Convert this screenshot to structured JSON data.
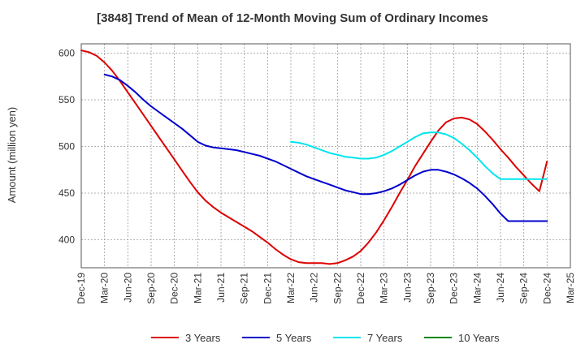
{
  "chart_data": {
    "type": "line",
    "title": "[3848]  Trend of Mean of 12-Month Moving Sum of Ordinary Incomes",
    "xlabel": "",
    "ylabel": "Amount (million yen)",
    "ylim": [
      370,
      610
    ],
    "yticks": [
      400,
      450,
      500,
      550,
      600
    ],
    "categories": [
      "Dec-19",
      "Mar-20",
      "Jun-20",
      "Sep-20",
      "Dec-20",
      "Mar-21",
      "Jun-21",
      "Sep-21",
      "Dec-21",
      "Mar-22",
      "Jun-22",
      "Sep-22",
      "Dec-22",
      "Mar-23",
      "Jun-23",
      "Sep-23",
      "Dec-23",
      "Mar-24",
      "Jun-24",
      "Sep-24",
      "Dec-24",
      "Mar-25"
    ],
    "grid": true,
    "legend_position": "bottom",
    "series": [
      {
        "name": "3 Years",
        "color": "#dd0000",
        "x": [
          0,
          0.333,
          0.667,
          1,
          1.333,
          1.667,
          2,
          2.333,
          2.667,
          3,
          3.333,
          3.667,
          4,
          4.333,
          4.667,
          5,
          5.333,
          5.667,
          6,
          6.333,
          6.667,
          7,
          7.333,
          7.667,
          8,
          8.333,
          8.667,
          9,
          9.333,
          9.667,
          10,
          10.333,
          10.667,
          11,
          11.333,
          11.667,
          12,
          12.333,
          12.667,
          13,
          13.333,
          13.667,
          14,
          14.333,
          14.667,
          15,
          15.333,
          15.667,
          16,
          16.333,
          16.667,
          17,
          17.333,
          17.667,
          18,
          18.333,
          18.667,
          19,
          19.333,
          19.667,
          20
        ],
        "values": [
          603,
          601,
          597,
          590,
          581,
          570,
          558,
          546,
          534,
          522,
          510,
          498,
          486,
          474,
          462,
          451,
          442,
          435,
          429,
          424,
          419,
          414,
          409,
          403,
          397,
          390,
          384,
          379,
          376,
          375,
          375,
          375,
          374,
          375,
          378,
          382,
          388,
          397,
          408,
          421,
          435,
          450,
          464,
          479,
          492,
          505,
          517,
          526,
          530,
          531,
          529,
          524,
          516,
          507,
          497,
          488,
          478,
          469,
          460,
          452,
          484
        ],
        "values_note": "ordered by x"
      },
      {
        "name": "5 Years",
        "color": "#0000cc",
        "x": [
          1,
          1.333,
          1.667,
          2,
          2.333,
          2.667,
          3,
          3.333,
          3.667,
          4,
          4.333,
          4.667,
          5,
          5.333,
          5.667,
          6,
          6.333,
          6.667,
          7,
          7.333,
          7.667,
          8,
          8.333,
          8.667,
          9,
          9.333,
          9.667,
          10,
          10.333,
          10.667,
          11,
          11.333,
          11.667,
          12,
          12.333,
          12.667,
          13,
          13.333,
          13.667,
          14,
          14.333,
          14.667,
          15,
          15.333,
          15.667,
          16,
          16.333,
          16.667,
          17,
          17.333,
          17.667,
          18,
          18.333,
          18.667,
          19,
          19.333,
          19.667,
          20
        ],
        "values": [
          577,
          575,
          571,
          565,
          558,
          550,
          543,
          537,
          531,
          525,
          519,
          512,
          505,
          501,
          499,
          498,
          497,
          496,
          494,
          492,
          490,
          487,
          484,
          480,
          476,
          472,
          468,
          465,
          462,
          459,
          456,
          453,
          451,
          449,
          449,
          450,
          452,
          455,
          459,
          464,
          469,
          473,
          475,
          475,
          473,
          470,
          466,
          461,
          455,
          447,
          438,
          428,
          420,
          420,
          420,
          420,
          420,
          420
        ],
        "values_note": "ordered by x"
      },
      {
        "name": "7 Years",
        "color": "#00e5ee",
        "x": [
          9,
          9.333,
          9.667,
          10,
          10.333,
          10.667,
          11,
          11.333,
          11.667,
          12,
          12.333,
          12.667,
          13,
          13.333,
          13.667,
          14,
          14.333,
          14.667,
          15,
          15.333,
          15.667,
          16,
          16.333,
          16.667,
          17,
          17.333,
          17.667,
          18,
          18.333,
          18.667,
          19,
          19.333,
          19.667,
          20
        ],
        "values": [
          505,
          504,
          502,
          499,
          496,
          493,
          491,
          489,
          488,
          487,
          487,
          488,
          491,
          495,
          500,
          505,
          510,
          514,
          515,
          515,
          513,
          509,
          503,
          496,
          488,
          479,
          471,
          465,
          465,
          465,
          465,
          465,
          465,
          465
        ],
        "values_note": "ordered by x"
      },
      {
        "name": "10 Years",
        "color": "#008800",
        "x": [],
        "values": []
      }
    ]
  }
}
